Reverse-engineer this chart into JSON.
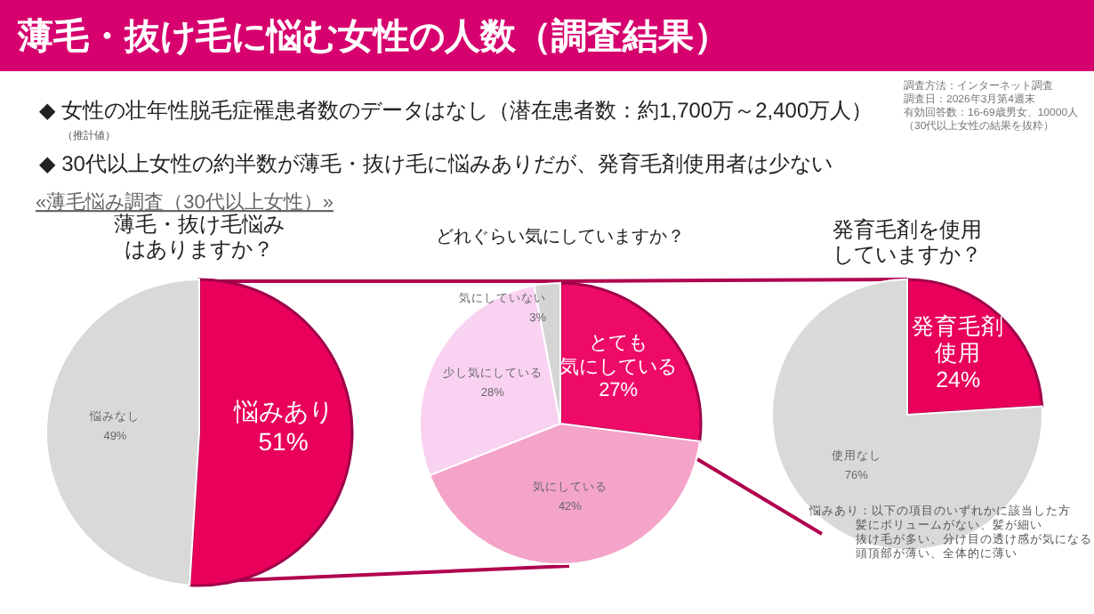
{
  "chart_data": [
    {
      "type": "other",
      "title": "薄毛・抜け毛に悩む女性の人数（調査結果）",
      "annotations": [
        "◆ 女性の壮年性脱毛症罹患者数のデータはなし（潜在患者数：約1,700万～2,400万人）",
        "（推計値）",
        "◆ 30代以上女性の約半数が薄毛・抜け毛に悩みありだが、発育毛剤使用者は少ない",
        "«薄毛悩み調査（30代以上女性）»",
        "調査方法：インターネット調査",
        "調査日：2026年3月第4週末",
        "有効回答数：16-69歳男女、10000人",
        "（30代以上女性の結果を抜粋）"
      ]
    },
    {
      "type": "pie",
      "title": "薄毛・抜け毛悩みはありますか？",
      "categories": [
        "悩みあり",
        "悩みなし"
      ],
      "values": [
        51,
        49
      ],
      "value_labels": [
        "51%",
        "49%"
      ],
      "colors": [
        "#e8005a",
        "#d9d9d9"
      ]
    },
    {
      "type": "pie",
      "title": "どれぐらい気にしていますか？",
      "categories": [
        "とても気にしている",
        "気にしている",
        "少し気にしている",
        "気にしていない"
      ],
      "values": [
        27,
        42,
        28,
        3
      ],
      "value_labels": [
        "27%",
        "42%",
        "28%",
        "3%"
      ],
      "colors": [
        "#ee0a67",
        "#f4a3c9",
        "#f9d2f2",
        "#d4d4d4"
      ]
    },
    {
      "type": "pie",
      "title": "発育毛剤を使用していますか？",
      "categories": [
        "発育毛剤使用",
        "使用なし"
      ],
      "values": [
        24,
        76
      ],
      "value_labels": [
        "24%",
        "76%"
      ],
      "colors": [
        "#e8005a",
        "#d9d9d9"
      ],
      "annotations": [
        "悩みあり：以下の項目のいずれかに該当した方",
        "髪にボリュームがない、髪が細い",
        "抜け毛が多い、分け目の透け感が気になる",
        "頭頂部が薄い、全体的に薄い"
      ]
    }
  ]
}
